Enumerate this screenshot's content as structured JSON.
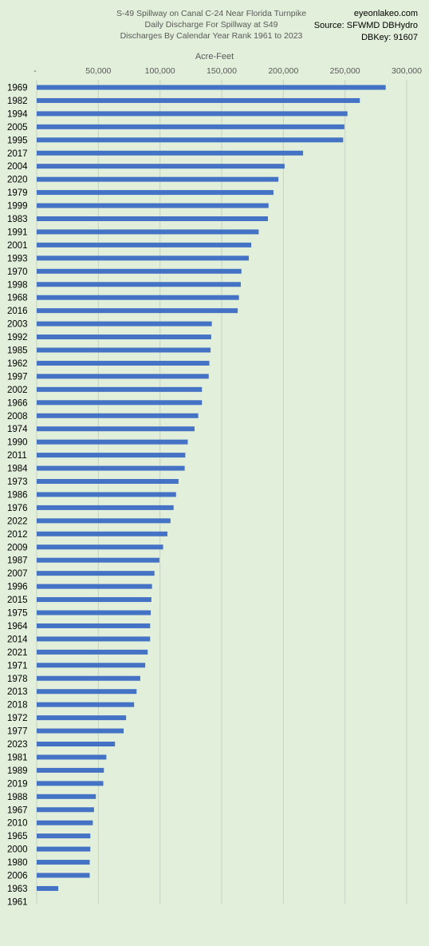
{
  "chart_data": {
    "type": "bar",
    "orientation": "horizontal",
    "title_lines": [
      "S-49 Spillway on Canal C-24 Near Florida Turnpike",
      "Daily Discharge For Spillway at S49",
      "Discharges By Calendar Year Rank 1961 to 2023"
    ],
    "source_lines": [
      "eyeonlakeo.com",
      "Source: SFWMD DBHydro",
      "DBKey: 91607"
    ],
    "xlabel": "Acre-Feet",
    "xlim": [
      0,
      300000
    ],
    "x_ticks": [
      "-",
      "50,000",
      "100,000",
      "150,000",
      "200,000",
      "250,000",
      "300,000"
    ],
    "grid": true,
    "bar_color": "#4472c4",
    "categories": [
      "1969",
      "1982",
      "1994",
      "2005",
      "1995",
      "2017",
      "2004",
      "2020",
      "1979",
      "1999",
      "1983",
      "1991",
      "2001",
      "1993",
      "1970",
      "1998",
      "1968",
      "2016",
      "2003",
      "1992",
      "1985",
      "1962",
      "1997",
      "2002",
      "1966",
      "2008",
      "1974",
      "1990",
      "2011",
      "1984",
      "1973",
      "1986",
      "1976",
      "2022",
      "2012",
      "2009",
      "1987",
      "2007",
      "1996",
      "2015",
      "1975",
      "1964",
      "2014",
      "2021",
      "1971",
      "1978",
      "2013",
      "2018",
      "1972",
      "1977",
      "2023",
      "1981",
      "1989",
      "2019",
      "1988",
      "1967",
      "2010",
      "1965",
      "2000",
      "1980",
      "2006",
      "1963",
      "1961"
    ],
    "values": [
      283000,
      262000,
      252000,
      249500,
      248500,
      216000,
      201000,
      196000,
      192000,
      188000,
      187500,
      180000,
      174000,
      172000,
      166000,
      165500,
      164000,
      163000,
      142000,
      141500,
      141000,
      140000,
      139500,
      134000,
      134000,
      131000,
      128000,
      122500,
      120500,
      120000,
      115000,
      113000,
      111000,
      108500,
      106000,
      102500,
      99500,
      95500,
      93500,
      93000,
      92500,
      92000,
      92000,
      90000,
      88000,
      84000,
      81000,
      79000,
      72500,
      70500,
      63500,
      56500,
      54500,
      54000,
      48000,
      46500,
      45500,
      43500,
      43500,
      43000,
      43000,
      17500,
      0
    ]
  }
}
